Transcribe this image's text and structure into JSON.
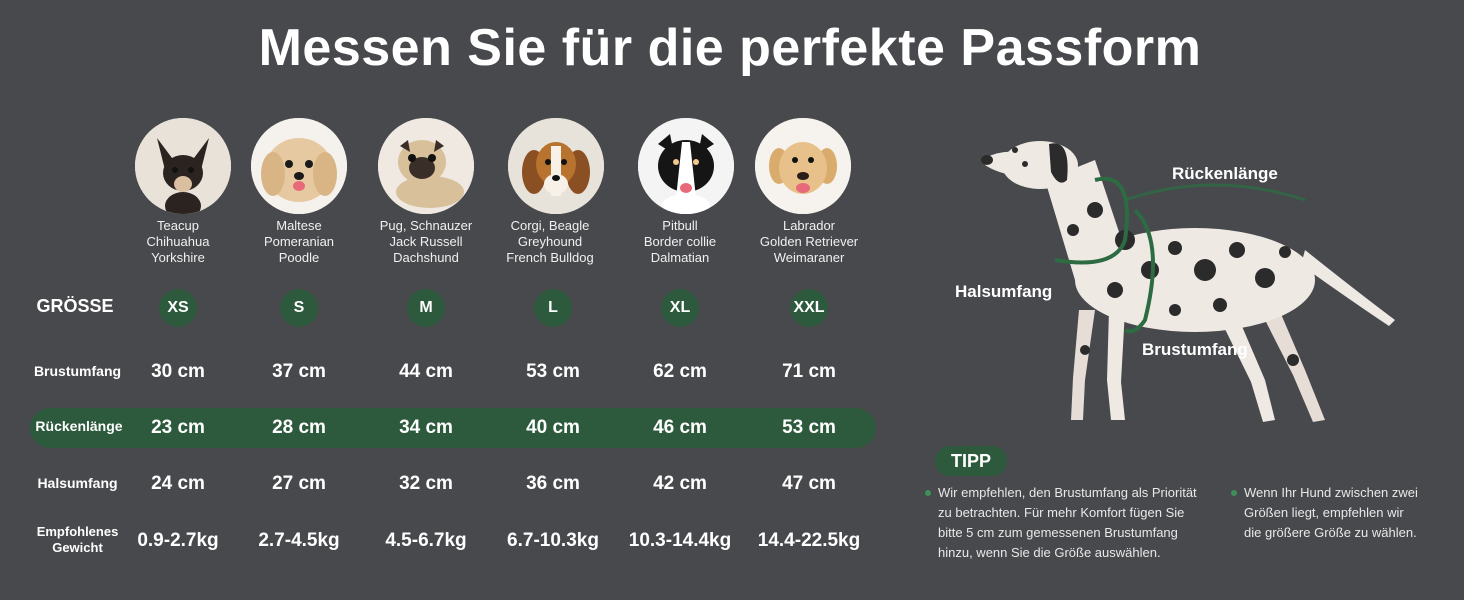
{
  "title": "Messen Sie für die perfekte Passform",
  "columns": [
    {
      "breeds": [
        "Teacup",
        "Chihuahua",
        "Yorkshire"
      ],
      "size": "XS",
      "brust": "30 cm",
      "ruecken": "23 cm",
      "hals": "24 cm",
      "gewicht": "0.9-2.7kg",
      "icon": "chihuahua-icon"
    },
    {
      "breeds": [
        "Maltese",
        "Pomeranian",
        "Poodle"
      ],
      "size": "S",
      "brust": "37 cm",
      "ruecken": "28 cm",
      "hals": "27 cm",
      "gewicht": "2.7-4.5kg",
      "icon": "maltese-icon"
    },
    {
      "breeds": [
        "Pug, Schnauzer",
        "Jack Russell",
        "Dachshund"
      ],
      "size": "M",
      "brust": "44 cm",
      "ruecken": "34 cm",
      "hals": "32 cm",
      "gewicht": "4.5-6.7kg",
      "icon": "pug-icon"
    },
    {
      "breeds": [
        "Corgi, Beagle",
        "Greyhound",
        "French Bulldog"
      ],
      "size": "L",
      "brust": "53 cm",
      "ruecken": "40 cm",
      "hals": "36 cm",
      "gewicht": "6.7-10.3kg",
      "icon": "beagle-icon"
    },
    {
      "breeds": [
        "Pitbull",
        "Border collie",
        "Dalmatian"
      ],
      "size": "XL",
      "brust": "62 cm",
      "ruecken": "46 cm",
      "hals": "42 cm",
      "gewicht": "10.3-14.4kg",
      "icon": "border-collie-icon"
    },
    {
      "breeds": [
        "Labrador",
        "Golden Retriever",
        "Weimaraner"
      ],
      "size": "XXL",
      "brust": "71 cm",
      "ruecken": "53 cm",
      "hals": "47 cm",
      "gewicht": "14.4-22.5kg",
      "icon": "labrador-icon"
    }
  ],
  "row_labels": {
    "groesse": "GRÖSSE",
    "brust": "Brustumfang",
    "ruecken": "Rückenlänge",
    "hals": "Halsumfang",
    "gewicht_1": "Empfohlenes",
    "gewicht_2": "Gewicht"
  },
  "dog_labels": {
    "ruecken": "Rückenlänge",
    "hals": "Halsumfang",
    "brust": "Brustumfang"
  },
  "tipp": {
    "label": "TIPP",
    "tip1": [
      "Wir empfehlen, den Brustumfang als Priorität",
      "zu betrachten. Für mehr Komfort fügen Sie",
      "bitte 5 cm zum gemessenen Brustumfang",
      "hinzu, wenn Sie die Größe auswählen."
    ],
    "tip2": [
      "Wenn Ihr Hund zwischen zwei",
      "Größen liegt, empfehlen wir",
      "die größere Größe zu wählen."
    ]
  },
  "colors": {
    "background": "#48494c",
    "accent_green": "#2d5a3d",
    "bullet_green": "#3f8f5a"
  }
}
